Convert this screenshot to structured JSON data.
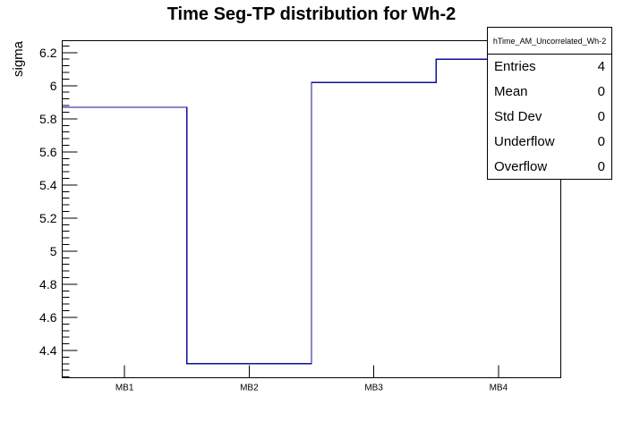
{
  "title": "Time Seg-TP distribution for Wh-2",
  "chart_data": {
    "type": "line",
    "subtype": "step-histogram",
    "title": "Time Seg-TP distribution for Wh-2",
    "xlabel": "",
    "ylabel": "sigma",
    "categories": [
      "MB1",
      "MB2",
      "MB3",
      "MB4"
    ],
    "values": [
      5.87,
      4.32,
      6.02,
      6.16
    ],
    "ylim": [
      4.235,
      6.272
    ],
    "y_major_ticks": [
      4.4,
      4.6,
      4.8,
      5.0,
      5.2,
      5.4,
      5.6,
      5.8,
      6.0,
      6.2
    ],
    "y_tick_labels": [
      "4.4",
      "4.6",
      "4.8",
      "5",
      "5.2",
      "5.4",
      "5.6",
      "5.8",
      "6",
      "6.2"
    ],
    "y_minor_step": 0.04,
    "grid": false,
    "legend_position": "none",
    "line_color": "#10109a",
    "frame_color": "#000000",
    "text_color": "#000000"
  },
  "stats_box": {
    "header": "hTime_AM_Uncorrelated_Wh-2",
    "rows": [
      {
        "label": "Entries",
        "value": "4"
      },
      {
        "label": "Mean",
        "value": "0"
      },
      {
        "label": "Std Dev",
        "value": "0"
      },
      {
        "label": "Underflow",
        "value": "0"
      },
      {
        "label": "Overflow",
        "value": "0"
      }
    ]
  }
}
